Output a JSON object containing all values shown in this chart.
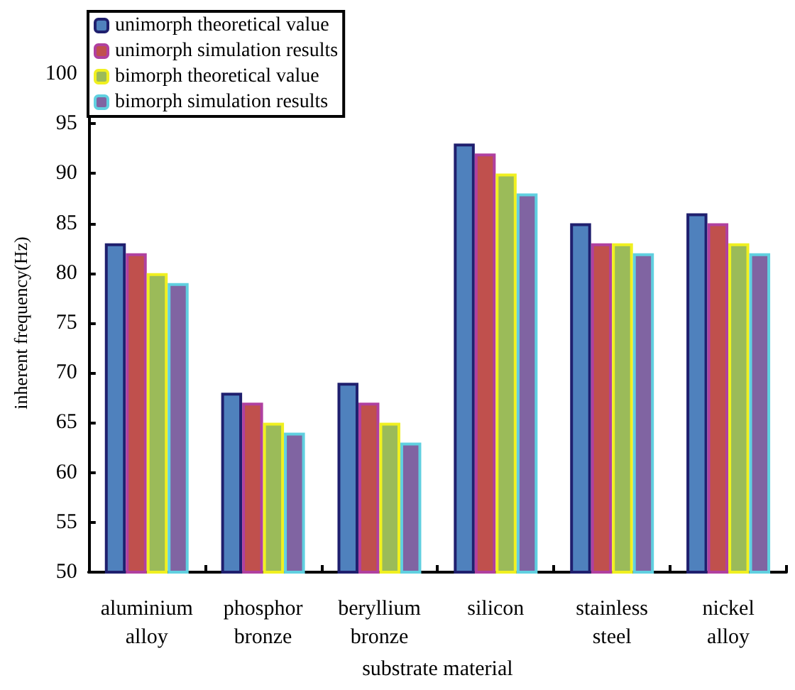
{
  "chart_data": {
    "type": "bar",
    "xlabel": "substrate material",
    "ylabel": "inherent frequency(Hz)",
    "categories": [
      "aluminium alloy",
      "phosphor bronze",
      "beryllium bronze",
      "silicon",
      "stainless steel",
      "nickel alloy"
    ],
    "series": [
      {
        "name": "unimorph theoretical value",
        "color": "#4f81bd",
        "values": [
          83,
          68,
          69,
          93,
          85,
          86
        ]
      },
      {
        "name": "unimorph simulation results",
        "color": "#c0504d",
        "values": [
          82,
          67,
          67,
          92,
          83,
          85
        ]
      },
      {
        "name": "bimorph theoretical value",
        "color": "#9bbb59",
        "values": [
          80,
          65,
          65,
          90,
          83,
          83
        ]
      },
      {
        "name": "bimorph simulation results",
        "color": "#8064a2",
        "values": [
          79,
          64,
          63,
          88,
          82,
          82
        ]
      }
    ],
    "ylim": [
      50,
      100
    ],
    "yticks": [
      50,
      55,
      60,
      65,
      70,
      75,
      80,
      85,
      90,
      95,
      100
    ],
    "grid": false,
    "legend": "top left"
  }
}
